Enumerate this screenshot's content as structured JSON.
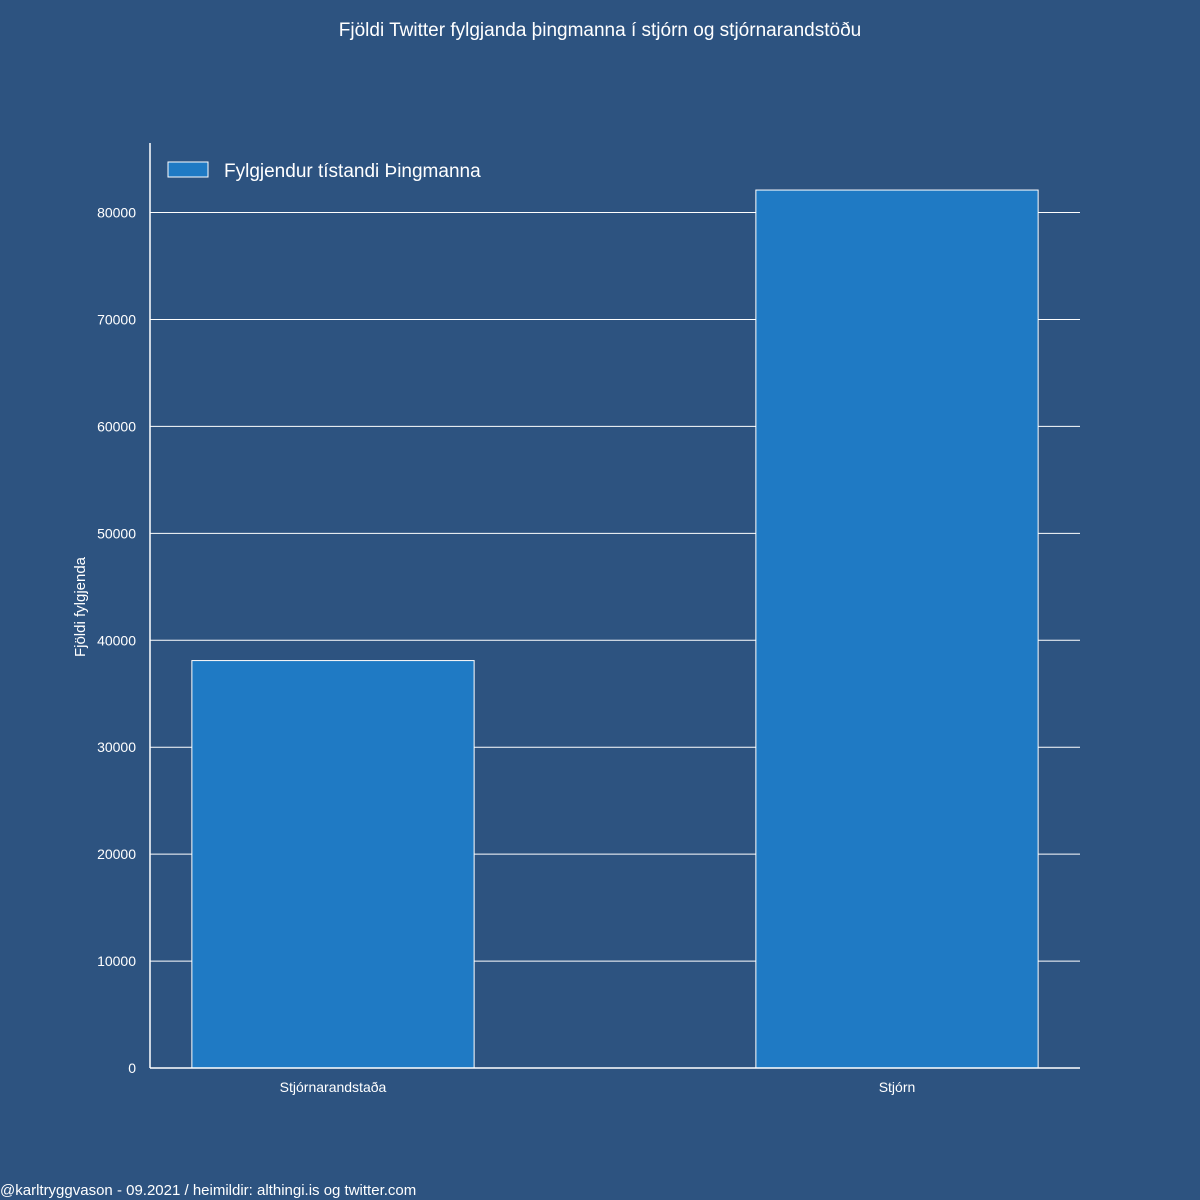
{
  "chart_data": {
    "type": "bar",
    "title": "Fjöldi Twitter fylgjanda þingmanna í stjórn og stjórnarandstöðu",
    "xlabel": "",
    "ylabel": "Fjöldi fylgjenda",
    "categories": [
      "Stjórnarandstaða",
      "Stjórn"
    ],
    "series": [
      {
        "name": "Fylgjendur tístandi Þingmanna",
        "values": [
          38100,
          82100
        ]
      }
    ],
    "ylim": [
      0,
      86500
    ],
    "yticks": [
      0,
      10000,
      20000,
      30000,
      40000,
      50000,
      60000,
      70000,
      80000
    ],
    "grid": true,
    "legend_position": "top-left",
    "colors": {
      "background": "#2d5380",
      "bar": "#1f7ac4",
      "bar_edge": "#ffffff",
      "grid": "#ffffff",
      "text": "#ffffff"
    }
  },
  "footer": {
    "credit": "@karltryggvason - 09.2021 / heimildir: althingi.is og twitter.com"
  }
}
